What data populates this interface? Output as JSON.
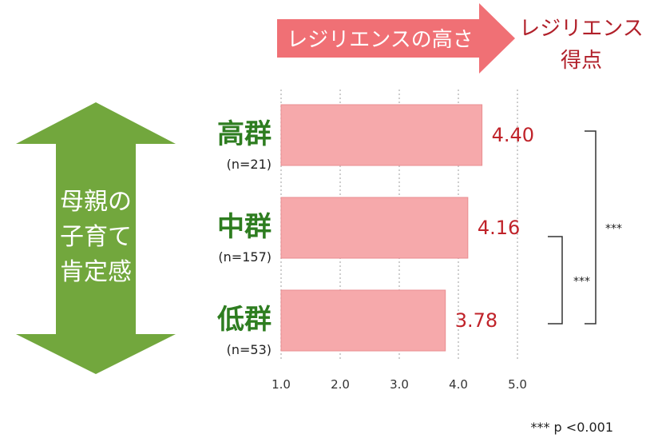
{
  "header": {
    "arrow_label": "レジリエンスの高さ",
    "score_label_line1": "レジリエンス",
    "score_label_line2": "得点"
  },
  "side_arrow": {
    "line1": "母親の",
    "line2": "子育て",
    "line3": "肯定感"
  },
  "chart_data": {
    "type": "bar",
    "orientation": "horizontal",
    "xlim": [
      1.0,
      5.0
    ],
    "xticks": [
      "1.0",
      "2.0",
      "3.0",
      "4.0",
      "5.0"
    ],
    "grid": "vertical dotted",
    "categories": [
      {
        "label": "高群",
        "n": "(n=21)",
        "value": 4.4,
        "value_label": "4.40"
      },
      {
        "label": "中群",
        "n": "(n=157)",
        "value": 4.16,
        "value_label": "4.16"
      },
      {
        "label": "低群",
        "n": "(n=53)",
        "value": 3.78,
        "value_label": "3.78"
      }
    ],
    "significance": [
      {
        "from": "中群",
        "to": "低群",
        "label": "***"
      },
      {
        "from": "高群",
        "to": "低群",
        "label": "***"
      }
    ],
    "bar_color": "#f6a9ab"
  },
  "footnote": "*** p <0.001"
}
